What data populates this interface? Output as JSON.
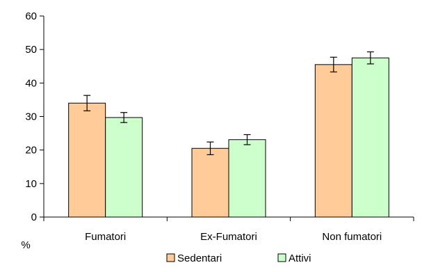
{
  "chart_data": {
    "type": "bar",
    "title": "",
    "xlabel": "",
    "ylabel": "%",
    "ylim": [
      0,
      60
    ],
    "yticks": [
      0,
      10,
      20,
      30,
      40,
      50,
      60
    ],
    "categories": [
      "Fumatori",
      "Ex-Fumatori",
      "Non fumatori"
    ],
    "series": [
      {
        "name": "Sedentari",
        "color": "#FFCC99",
        "values": [
          34,
          20.5,
          45.5
        ],
        "error": [
          2.3,
          1.9,
          2.2
        ]
      },
      {
        "name": "Attivi",
        "color": "#CCFFCC",
        "values": [
          29.7,
          23.1,
          47.5
        ],
        "error": [
          1.5,
          1.5,
          1.8
        ]
      }
    ],
    "grid": false,
    "legend": "bottom"
  }
}
